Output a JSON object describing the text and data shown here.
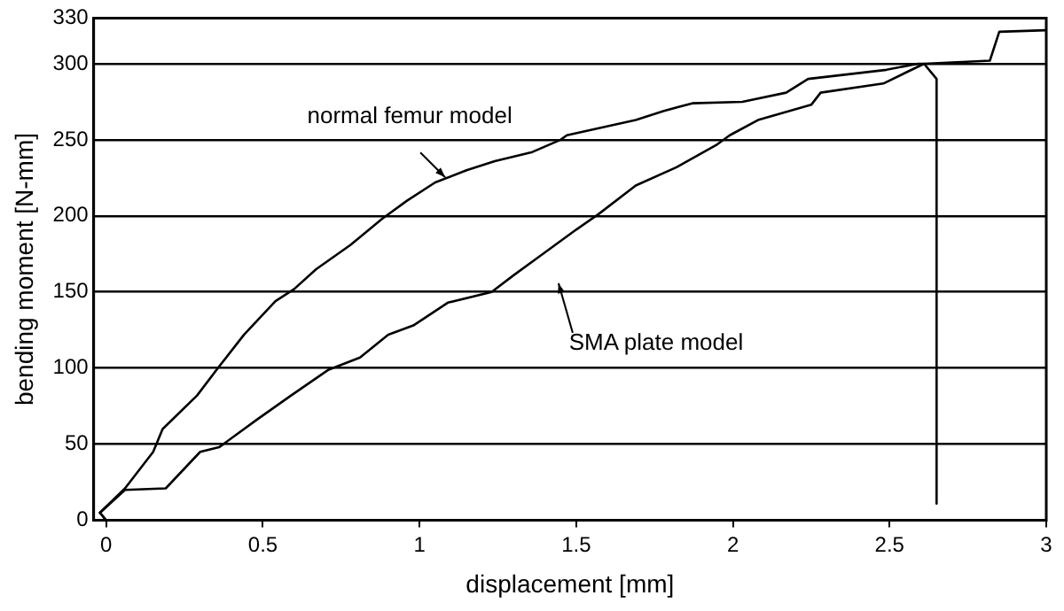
{
  "chart_data": {
    "type": "line",
    "xlabel": "displacement [mm]",
    "ylabel": "bending moment [N-mm]",
    "xlim": [
      -0.04,
      3
    ],
    "xticks": [
      0,
      0.5,
      1,
      1.5,
      2,
      2.5,
      3
    ],
    "ylim": [
      0,
      330
    ],
    "yticks": [
      0,
      50,
      100,
      150,
      200,
      250,
      300,
      330
    ],
    "grid": "y",
    "legend": false,
    "marker": "none",
    "line_style": "solid",
    "series": [
      {
        "color": "#000000",
        "x": [
          0,
          -0.02,
          0.06,
          0.15,
          0.18,
          0.29,
          0.36,
          0.44,
          0.54,
          0.6,
          0.67,
          0.78,
          0.88,
          0.96,
          1.05,
          1.15,
          1.24,
          1.36,
          1.45,
          1.47,
          1.69,
          1.78,
          1.87,
          2.03,
          2.17,
          2.24,
          2.49,
          2.59,
          2.61,
          2.65,
          2.65
        ],
        "values": [
          0,
          5,
          21,
          45,
          60,
          82,
          101,
          122,
          144,
          152,
          165,
          181,
          198,
          210,
          222,
          230,
          236,
          242,
          250,
          253,
          263,
          269,
          274,
          275,
          281,
          290,
          296,
          300,
          300,
          290,
          11
        ]
      },
      {
        "color": "#000000",
        "x": [
          0,
          -0.02,
          0.06,
          0.19,
          0.3,
          0.36,
          0.48,
          0.59,
          0.71,
          0.81,
          0.9,
          0.98,
          1.09,
          1.23,
          1.3,
          1.38,
          1.5,
          1.57,
          1.69,
          1.82,
          1.95,
          1.99,
          2.08,
          2.25,
          2.28,
          2.48,
          2.55,
          2.61,
          2.82,
          2.85,
          3.0
        ],
        "values": [
          0,
          5,
          20,
          21,
          45,
          48,
          66,
          82,
          99,
          107,
          122,
          128,
          143,
          150,
          161,
          173,
          191,
          201,
          220,
          232,
          247,
          253,
          263,
          273,
          281,
          287,
          294,
          300,
          302,
          321,
          322
        ]
      }
    ],
    "annotations": [
      "normal femur model",
      "SMA plate model"
    ]
  }
}
